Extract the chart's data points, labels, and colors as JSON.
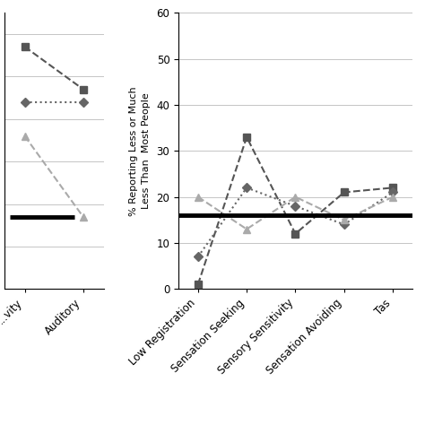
{
  "left_chart": {
    "x_labels": [
      "...vity",
      "Auditory"
    ],
    "series": [
      {
        "name": "dark_square",
        "values": [
          57,
          47
        ],
        "color": "#555555",
        "marker": "s",
        "linestyle": "--",
        "markersize": 6,
        "linewidth": 1.5,
        "zorder": 3
      },
      {
        "name": "dark_diamond",
        "values": [
          44,
          44
        ],
        "color": "#666666",
        "marker": "D",
        "linestyle": ":",
        "markersize": 5,
        "linewidth": 1.5,
        "zorder": 3
      },
      {
        "name": "light_triangle",
        "values": [
          36,
          17
        ],
        "color": "#aaaaaa",
        "marker": "^",
        "linestyle": "--",
        "markersize": 6,
        "linewidth": 1.5,
        "zorder": 3
      }
    ],
    "hline_y": 17,
    "ylim": [
      0,
      65
    ],
    "yticks": [
      10,
      20,
      30,
      40,
      50,
      60
    ],
    "background_color": "#ffffff"
  },
  "right_chart": {
    "x_labels": [
      "Low Registration",
      "Sensation Seeking",
      "Sensory Sensitivity",
      "Sensation Avoiding",
      "Tas"
    ],
    "series": [
      {
        "name": "dark_square",
        "values": [
          1,
          33,
          12,
          21,
          22
        ],
        "color": "#555555",
        "marker": "s",
        "linestyle": "--",
        "markersize": 6,
        "linewidth": 1.5,
        "zorder": 3
      },
      {
        "name": "dark_diamond",
        "values": [
          7,
          22,
          18,
          14,
          21
        ],
        "color": "#666666",
        "marker": "D",
        "linestyle": ":",
        "markersize": 5,
        "linewidth": 1.5,
        "zorder": 3
      },
      {
        "name": "light_triangle",
        "values": [
          20,
          13,
          20,
          15,
          20
        ],
        "color": "#aaaaaa",
        "marker": "^",
        "linestyle": "--",
        "markersize": 6,
        "linewidth": 1.5,
        "zorder": 3
      }
    ],
    "hline_y": 16,
    "ylim": [
      0,
      60
    ],
    "yticks": [
      0,
      10,
      20,
      30,
      40,
      50,
      60
    ],
    "ylabel_line1": "% Reporting Less or Much",
    "ylabel_line2": "Less Than  Most People",
    "background_color": "#ffffff"
  }
}
